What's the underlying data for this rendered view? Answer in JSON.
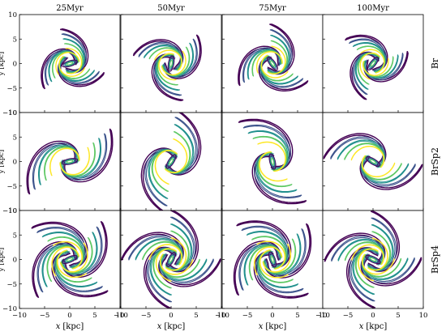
{
  "column_titles": [
    "25Myr",
    "50Myr",
    "75Myr",
    "100Myr"
  ],
  "row_labels": [
    "Br",
    "BrSp2",
    "BrSp4"
  ],
  "x_axis_label_italic": "x",
  "x_axis_label_unit": "[kpc]",
  "y_axis_label_partial": "y [kpc]",
  "x_tick_labels": [
    "−10",
    "−5",
    "0",
    "5",
    "10"
  ],
  "y_tick_labels": [
    "10",
    "5",
    "0",
    "−5",
    "−10"
  ],
  "colors": {
    "contour_levels": [
      "#440154",
      "#3b528b",
      "#21908d",
      "#5dc863",
      "#fde725"
    ],
    "frame": "#000000"
  },
  "panels": [
    {
      "row": 0,
      "col": 0,
      "model": "Br",
      "time": "25Myr",
      "arms": 3,
      "extent": 0.72,
      "rot": 0.3
    },
    {
      "row": 0,
      "col": 1,
      "model": "Br",
      "time": "50Myr",
      "arms": 3,
      "extent": 0.78,
      "rot": 1.4
    },
    {
      "row": 0,
      "col": 2,
      "model": "Br",
      "time": "75Myr",
      "arms": 3,
      "extent": 0.8,
      "rot": 2.2
    },
    {
      "row": 0,
      "col": 3,
      "model": "Br",
      "time": "100Myr",
      "arms": 3,
      "extent": 0.74,
      "rot": 0.9
    },
    {
      "row": 1,
      "col": 0,
      "model": "BrSp2",
      "time": "25Myr",
      "arms": 2,
      "extent": 1.05,
      "rot": 0.2
    },
    {
      "row": 1,
      "col": 1,
      "model": "BrSp2",
      "time": "50Myr",
      "arms": 2,
      "extent": 1.05,
      "rot": 1.0
    },
    {
      "row": 1,
      "col": 2,
      "model": "BrSp2",
      "time": "75Myr",
      "arms": 2,
      "extent": 1.05,
      "rot": 1.8
    },
    {
      "row": 1,
      "col": 3,
      "model": "BrSp2",
      "time": "100Myr",
      "arms": 2,
      "extent": 1.0,
      "rot": 2.6
    },
    {
      "row": 2,
      "col": 0,
      "model": "BrSp4",
      "time": "25Myr",
      "arms": 4,
      "extent": 1.0,
      "rot": 0.4
    },
    {
      "row": 2,
      "col": 1,
      "model": "BrSp4",
      "time": "50Myr",
      "arms": 4,
      "extent": 1.0,
      "rot": 1.1
    },
    {
      "row": 2,
      "col": 2,
      "model": "BrSp4",
      "time": "75Myr",
      "arms": 4,
      "extent": 1.0,
      "rot": 1.9
    },
    {
      "row": 2,
      "col": 3,
      "model": "BrSp4",
      "time": "100Myr",
      "arms": 4,
      "extent": 0.98,
      "rot": 2.7
    }
  ]
}
